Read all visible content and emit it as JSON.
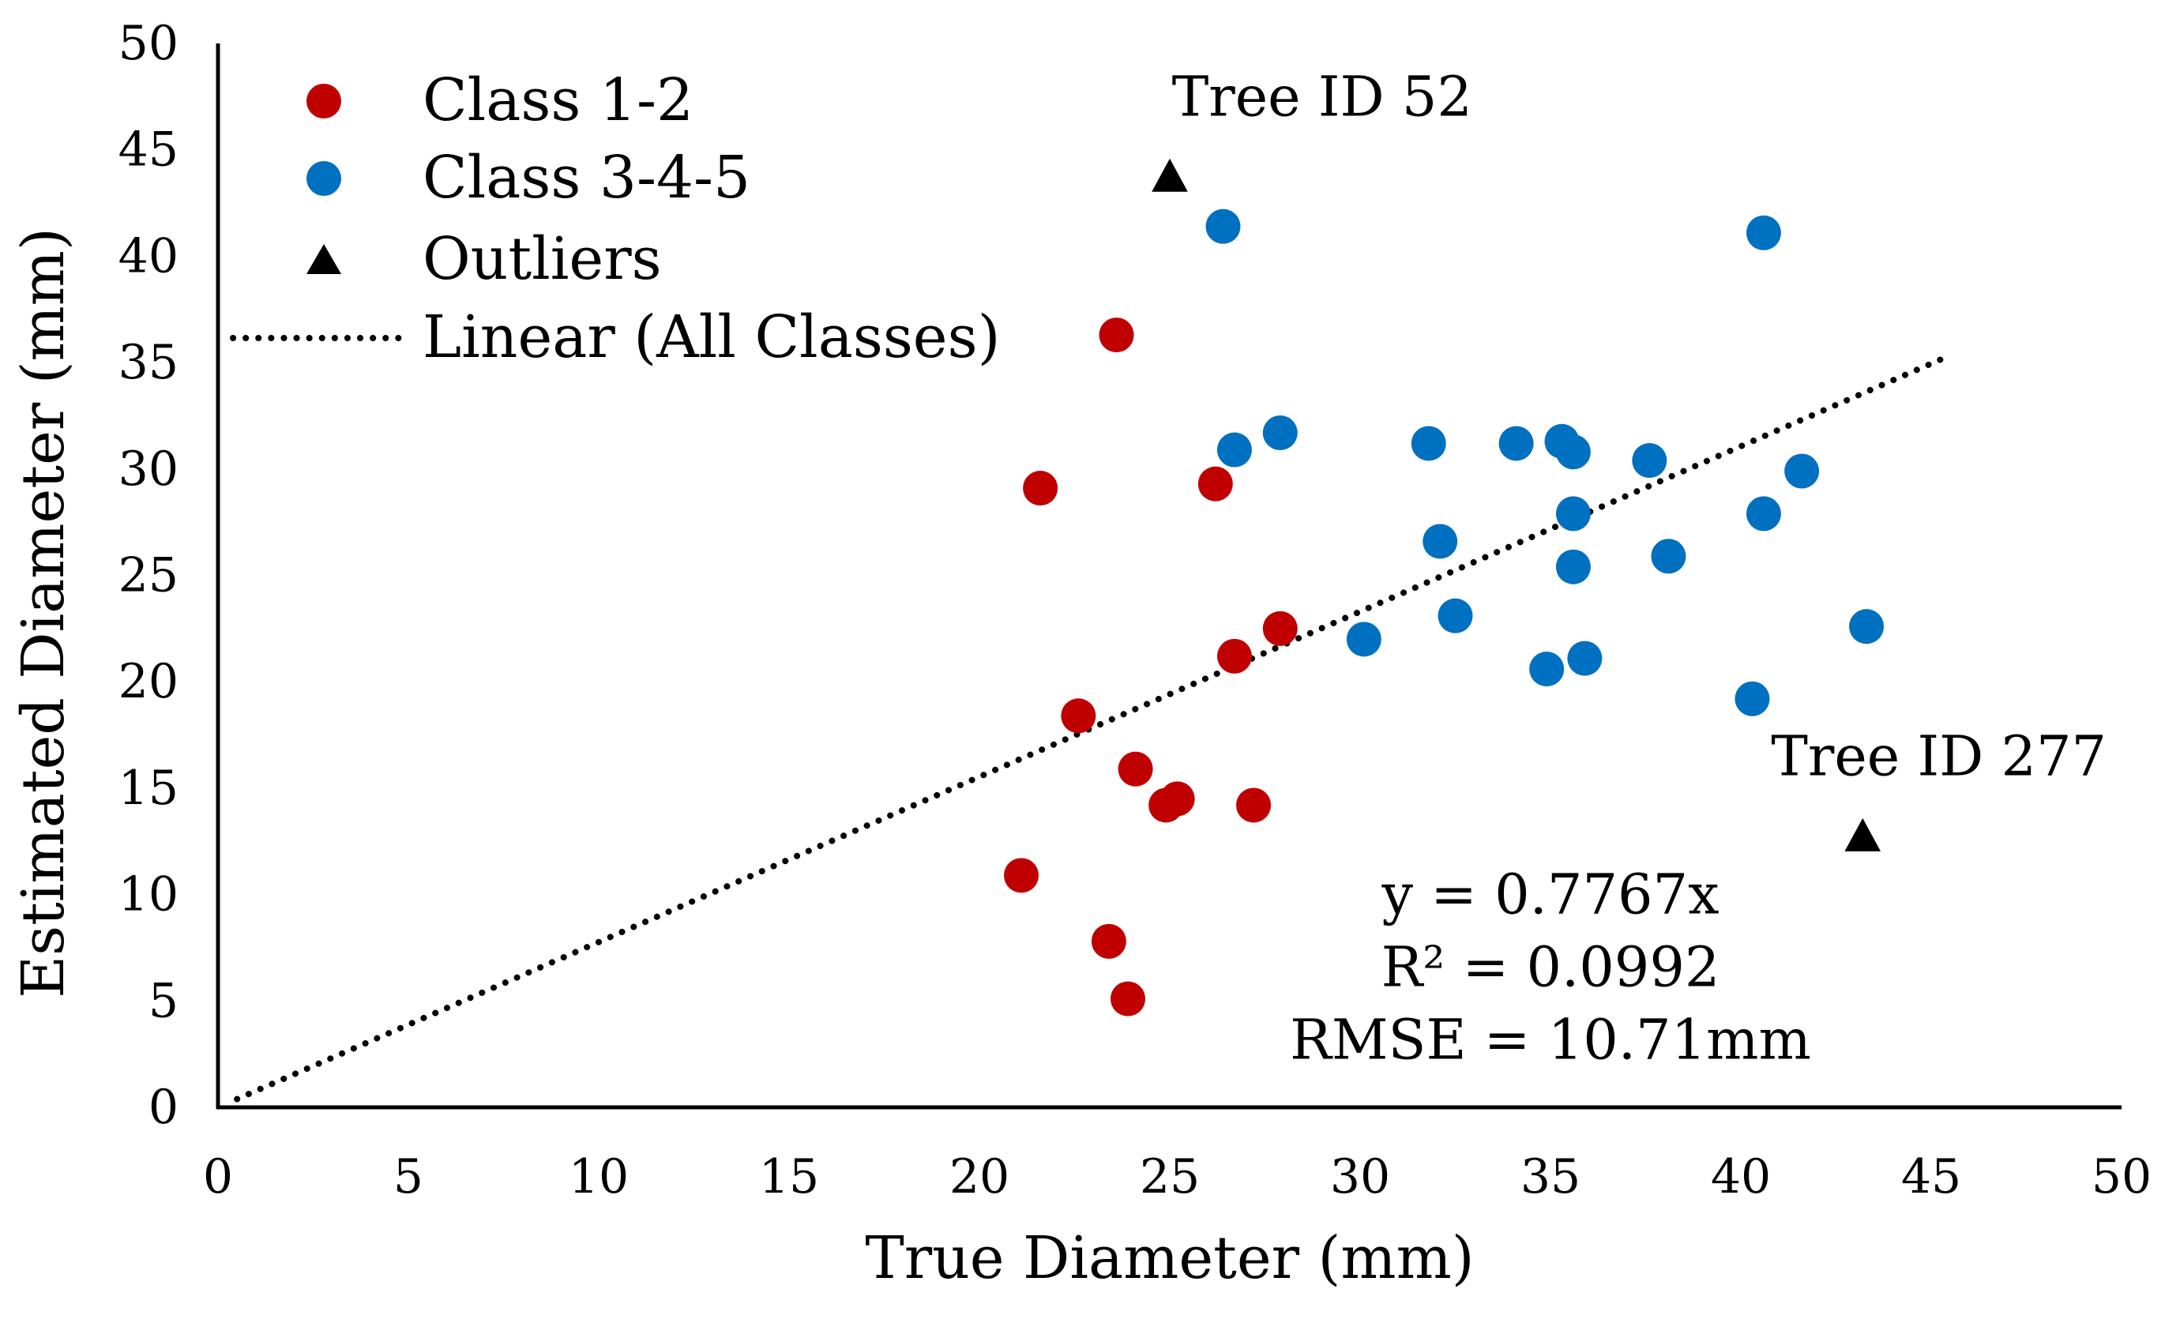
{
  "chart_data": {
    "type": "scatter",
    "title": "",
    "xlabel": "True Diameter (mm)",
    "ylabel": "Estimated Diameter (mm)",
    "xlim": [
      0,
      50
    ],
    "ylim": [
      0,
      50
    ],
    "xticks": [
      "0",
      "5",
      "10",
      "15",
      "20",
      "25",
      "30",
      "35",
      "40",
      "45",
      "50"
    ],
    "yticks": [
      "0",
      "5",
      "10",
      "15",
      "20",
      "25",
      "30",
      "35",
      "40",
      "45",
      "50"
    ],
    "grid": false,
    "legend_position": "top-left",
    "colors": {
      "class12": "#c00000",
      "class345": "#0070c0",
      "outlier": "#000000",
      "trend": "#000000",
      "axis": "#000000"
    },
    "series": [
      {
        "name": "Class 1-2",
        "marker": "circle",
        "color": "#c00000",
        "points": [
          [
            23.6,
            36.3
          ],
          [
            21.6,
            29.1
          ],
          [
            26.2,
            29.3
          ],
          [
            27.9,
            22.5
          ],
          [
            26.7,
            21.2
          ],
          [
            22.6,
            18.4
          ],
          [
            24.1,
            15.9
          ],
          [
            25.2,
            14.5
          ],
          [
            24.9,
            14.2
          ],
          [
            27.2,
            14.2
          ],
          [
            21.1,
            10.9
          ],
          [
            23.4,
            7.8
          ],
          [
            23.9,
            5.1
          ]
        ]
      },
      {
        "name": "Class 3-4-5",
        "marker": "circle",
        "color": "#0070c0",
        "points": [
          [
            26.4,
            41.4
          ],
          [
            40.6,
            41.1
          ],
          [
            26.7,
            30.9
          ],
          [
            27.9,
            31.7
          ],
          [
            31.8,
            31.2
          ],
          [
            34.1,
            31.2
          ],
          [
            35.3,
            31.3
          ],
          [
            35.6,
            30.8
          ],
          [
            37.6,
            30.4
          ],
          [
            41.6,
            29.9
          ],
          [
            35.6,
            27.9
          ],
          [
            40.6,
            27.9
          ],
          [
            32.1,
            26.6
          ],
          [
            38.1,
            25.9
          ],
          [
            35.6,
            25.4
          ],
          [
            32.5,
            23.1
          ],
          [
            30.1,
            22.0
          ],
          [
            43.3,
            22.6
          ],
          [
            35.9,
            21.1
          ],
          [
            34.9,
            20.6
          ],
          [
            40.3,
            19.2
          ]
        ]
      },
      {
        "name": "Outliers",
        "marker": "triangle",
        "color": "#000000",
        "points": [
          [
            25.0,
            43.7
          ],
          [
            43.2,
            12.7
          ]
        ]
      }
    ],
    "trendline": {
      "name": "Linear (All Classes)",
      "style": "dotted",
      "slope": 0.7767,
      "intercept": 0,
      "x_range": [
        0.5,
        45.3
      ]
    },
    "annotations": [
      {
        "text": "Tree ID 52",
        "x": 29.0,
        "y": 46.6
      },
      {
        "text": "Tree ID 277",
        "x": 45.2,
        "y": 15.6
      }
    ],
    "stats": {
      "equation": "y = 0.7767x",
      "r_squared": "R² = 0.0992",
      "rmse": "RMSE = 10.71mm"
    },
    "stats_anchor": {
      "x": 35.0,
      "y": 10.0
    }
  }
}
